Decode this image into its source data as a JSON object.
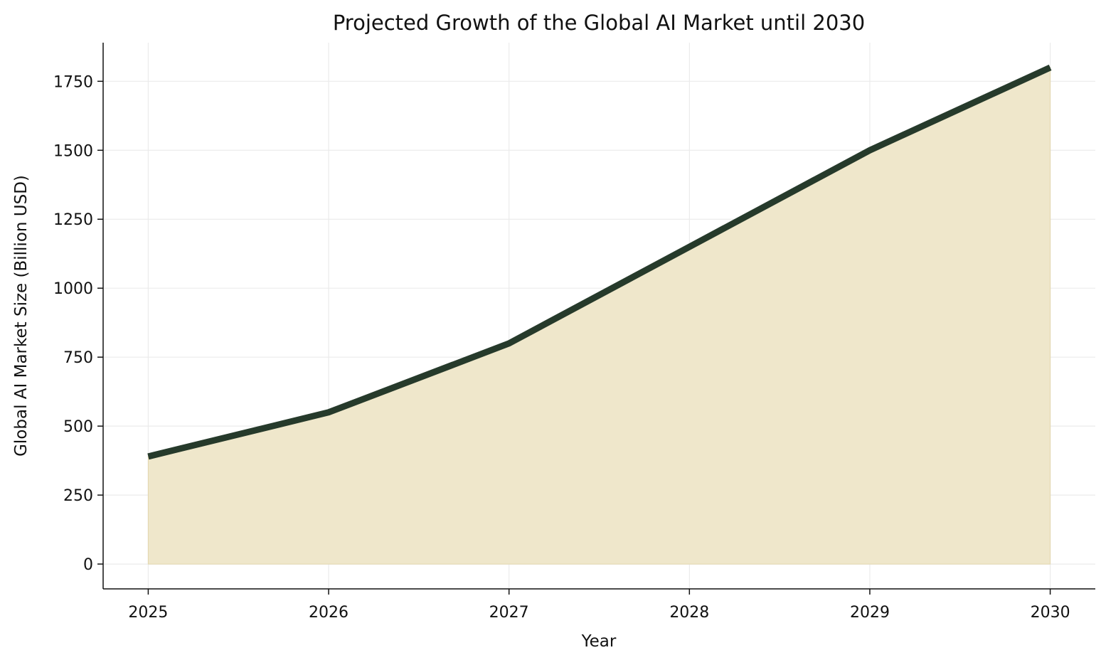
{
  "chart_data": {
    "type": "area",
    "title": "Projected Growth of the Global AI Market until 2030",
    "xlabel": "Year",
    "ylabel": "Global AI Market Size (Billion USD)",
    "x": [
      2025,
      2026,
      2027,
      2028,
      2029,
      2030
    ],
    "x_tick_labels": [
      "2025",
      "2026",
      "2027",
      "2028",
      "2029",
      "2030"
    ],
    "series": [
      {
        "name": "Global AI Market Size",
        "values": [
          390,
          550,
          800,
          1150,
          1500,
          1800
        ]
      }
    ],
    "y_ticks": [
      0,
      250,
      500,
      750,
      1000,
      1250,
      1500,
      1750
    ],
    "y_tick_labels": [
      "0",
      "250",
      "500",
      "750",
      "1000",
      "1250",
      "1500",
      "1750"
    ],
    "ylim": [
      -90,
      1890
    ],
    "xlim": [
      2024.75,
      2030.25
    ],
    "grid": true,
    "legend": "none",
    "colors": {
      "line": "#263a2b",
      "fill": "#efe7cb",
      "grid": "#ebebeb"
    }
  }
}
